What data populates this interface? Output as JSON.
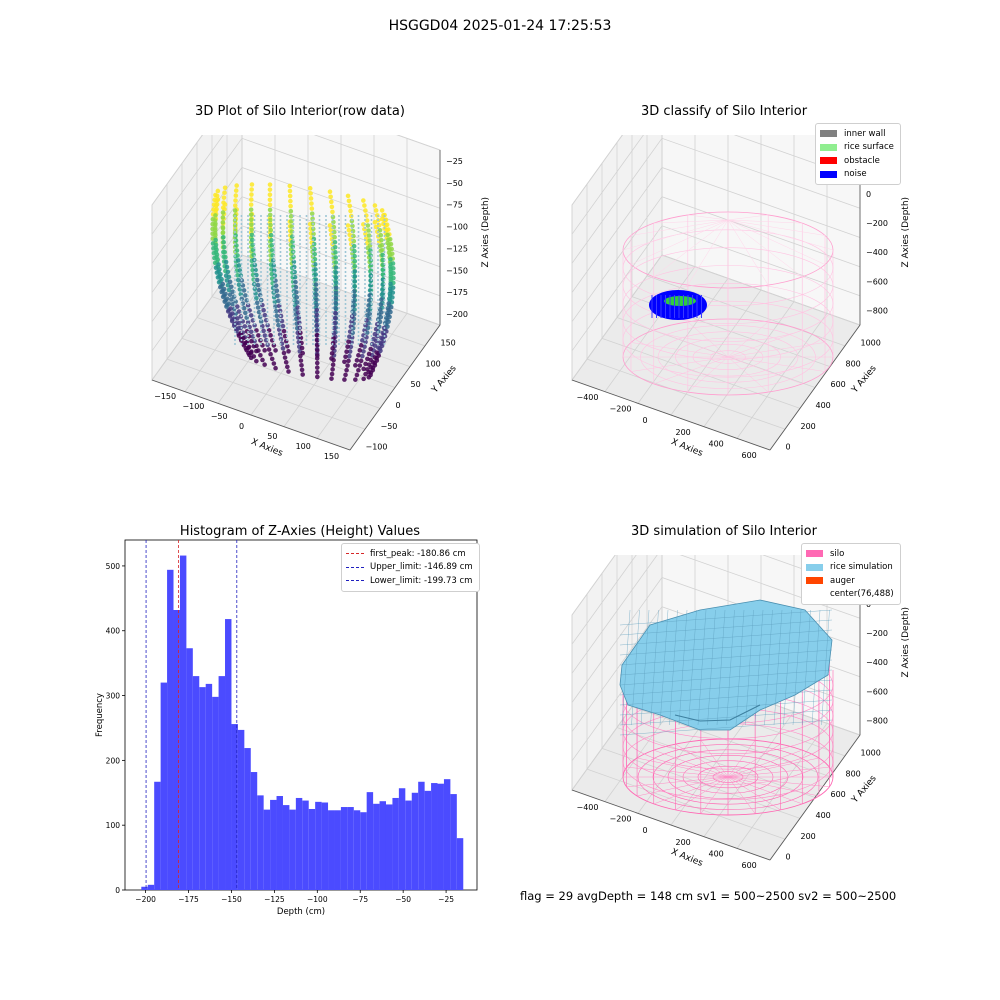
{
  "suptitle": "HSGGD04 2025-01-24 17:25:53",
  "footer": "flag = 29  avgDepth = 148 cm  sv1 = 500~2500  sv2 = 500~2500",
  "colors": {
    "histogram_bar": "#4b4bff",
    "first_peak": "#d62728",
    "limits": "#1f1fbf",
    "inner_wall": "#808080",
    "rice_surface": "#90ee90",
    "obstacle": "#ff0000",
    "noise": "#0000ff",
    "silo": "#ff69b4",
    "rice_simulation": "#87ceeb",
    "auger": "#ff4500"
  },
  "panels": {
    "raw": {
      "title": "3D Plot of Silo Interior(row data)",
      "xlabel": "X Axies",
      "ylabel": "Y Axies",
      "zlabel": "Z Axies (Depth)",
      "xticks": [
        "−150",
        "−100",
        "−50",
        "0",
        "50",
        "100",
        "150"
      ],
      "yticks": [
        "−100",
        "−50",
        "0",
        "50",
        "100",
        "150"
      ],
      "zticks": [
        "−25",
        "−50",
        "−75",
        "−100",
        "−125",
        "−150",
        "−175",
        "−200"
      ]
    },
    "classify": {
      "title": "3D classify of Silo Interior",
      "xlabel": "X Axies",
      "ylabel": "Y Axies",
      "zlabel": "Z Axies (Depth)",
      "xticks": [
        "−400",
        "−200",
        "0",
        "200",
        "400",
        "600"
      ],
      "yticks": [
        "0",
        "200",
        "400",
        "600",
        "800",
        "1000"
      ],
      "zticks": [
        "200",
        "0",
        "−200",
        "−400",
        "−600",
        "−800"
      ],
      "legend": [
        {
          "label": "inner wall",
          "color": "#808080"
        },
        {
          "label": "rice surface",
          "color": "#90ee90"
        },
        {
          "label": "obstacle",
          "color": "#ff0000"
        },
        {
          "label": "noise",
          "color": "#0000ff"
        }
      ]
    },
    "simulation": {
      "title": "3D simulation of Silo Interior",
      "xlabel": "X Axies",
      "ylabel": "Y Axies",
      "zlabel": "Z Axies (Depth)",
      "xticks": [
        "−400",
        "−200",
        "0",
        "200",
        "400",
        "600"
      ],
      "yticks": [
        "0",
        "200",
        "400",
        "600",
        "800",
        "1000"
      ],
      "zticks": [
        "200",
        "0",
        "−200",
        "−400",
        "−600",
        "−800"
      ],
      "legend": [
        {
          "label": "silo",
          "color": "#ff69b4"
        },
        {
          "label": "rice simulation",
          "color": "#87ceeb"
        },
        {
          "label": "auger",
          "color": "#ff4500"
        },
        {
          "label": "center(76,488)",
          "color": ""
        }
      ]
    }
  },
  "chart_data": {
    "type": "bar",
    "title": "Histogram of Z-Axies (Height) Values",
    "xlabel": "Depth (cm)",
    "ylabel": "Frequency",
    "xlim": [
      -212,
      -7
    ],
    "ylim": [
      0,
      540
    ],
    "xticks": [
      -200,
      -175,
      -150,
      -125,
      -100,
      -75,
      -50,
      -25
    ],
    "xtick_labels": [
      "−200",
      "−175",
      "−150",
      "−125",
      "−100",
      "−75",
      "−50",
      "−25"
    ],
    "yticks": [
      0,
      100,
      200,
      300,
      400,
      500
    ],
    "bin_start": -202.5,
    "bin_width": 3.75,
    "values": [
      5,
      8,
      167,
      320,
      494,
      432,
      516,
      373,
      330,
      313,
      318,
      298,
      330,
      418,
      256,
      247,
      219,
      182,
      146,
      124,
      139,
      145,
      131,
      124,
      142,
      138,
      125,
      136,
      135,
      123,
      123,
      128,
      128,
      123,
      120,
      151,
      133,
      137,
      132,
      142,
      157,
      138,
      150,
      167,
      153,
      165,
      164,
      171,
      148,
      80
    ],
    "vlines": [
      {
        "label": "first_peak: -180.86 cm",
        "x": -180.86,
        "color": "#d62728"
      },
      {
        "label": "Upper_limit: -146.89 cm",
        "x": -146.89,
        "color": "#1f1fbf"
      },
      {
        "label": "Lower_limit: -199.73 cm",
        "x": -199.73,
        "color": "#1f1fbf"
      }
    ]
  }
}
